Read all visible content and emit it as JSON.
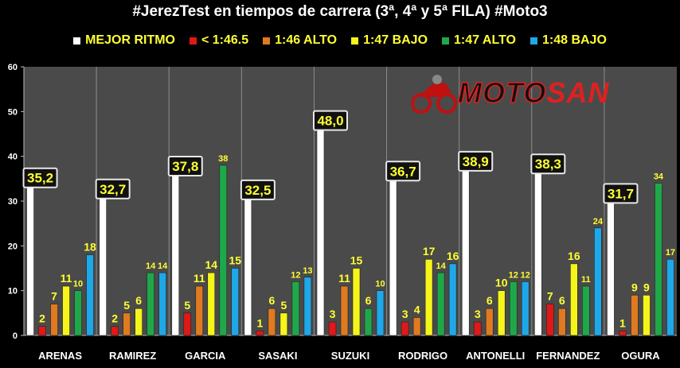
{
  "chart_data": {
    "type": "bar",
    "title": "#JerezTest en tiempos de carrera (3ª, 4ª y 5ª FILA) #Moto3",
    "categories": [
      "ARENAS",
      "RAMIREZ",
      "GARCIA",
      "SASAKI",
      "SUZUKI",
      "RODRIGO",
      "ANTONELLI",
      "FERNANDEZ",
      "OGURA"
    ],
    "ylim": [
      0,
      60
    ],
    "yticks": [
      "0",
      "10",
      "20",
      "30",
      "40",
      "50",
      "60"
    ],
    "grid": false,
    "legend_position": "top",
    "series": [
      {
        "name": "MEJOR RITMO",
        "color": "#ffffff",
        "values": [
          35.2,
          32.7,
          37.8,
          32.5,
          48.0,
          36.7,
          38.9,
          38.3,
          31.7
        ],
        "labels": [
          "35,2",
          "32,7",
          "37,8",
          "32,5",
          "48,0",
          "36,7",
          "38,9",
          "38,3",
          "31,7"
        ]
      },
      {
        "name": "< 1:46.5",
        "color": "#e01818",
        "values": [
          2,
          2,
          5,
          1,
          3,
          3,
          3,
          7,
          1
        ],
        "labels": [
          "2",
          "2",
          "5",
          "1",
          "3",
          "3",
          "3",
          "7",
          "1"
        ]
      },
      {
        "name": "1:46 ALTO",
        "color": "#e07a20",
        "values": [
          7,
          5,
          11,
          6,
          11,
          4,
          6,
          6,
          9
        ],
        "labels": [
          "7",
          "5",
          "11",
          "6",
          "11",
          "4",
          "6",
          "6",
          "9"
        ]
      },
      {
        "name": "1:47 BAJO",
        "color": "#f5f51a",
        "values": [
          11,
          6,
          14,
          5,
          15,
          17,
          10,
          16,
          9
        ],
        "labels": [
          "11",
          "6",
          "14",
          "5",
          "15",
          "17",
          "10",
          "16",
          "9"
        ]
      },
      {
        "name": "1:47 ALTO",
        "color": "#1fa84a",
        "values": [
          10,
          14,
          38,
          12,
          6,
          14,
          12,
          11,
          34
        ],
        "labels": [
          "10",
          "14",
          "38",
          "12",
          "6",
          "14",
          "12",
          "11",
          "34"
        ]
      },
      {
        "name": "1:48 BAJO",
        "color": "#1fa8e8",
        "values": [
          18,
          14,
          15,
          13,
          10,
          16,
          12,
          24,
          17
        ],
        "labels": [
          "18",
          "14",
          "15",
          "13",
          "10",
          "16",
          "12",
          "24",
          "17"
        ]
      }
    ]
  },
  "logo": {
    "part1": "MOTO",
    "part2": "SAN"
  }
}
